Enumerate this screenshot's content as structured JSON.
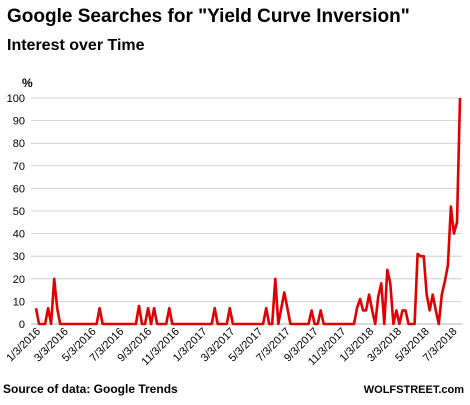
{
  "chart_data": {
    "type": "line",
    "title": "Google Searches for \"Yield Curve Inversion\"",
    "subtitle": "Interest over Time",
    "ylabel": "%",
    "xlabel": "",
    "ylim": [
      0,
      100
    ],
    "yticks": [
      0,
      10,
      20,
      30,
      40,
      50,
      60,
      70,
      80,
      90,
      100
    ],
    "xticks": [
      "1/3/2016",
      "3/3/2016",
      "5/3/2016",
      "7/3/2016",
      "9/3/2016",
      "11/3/2016",
      "1/3/2017",
      "3/3/2017",
      "5/3/2017",
      "7/3/2017",
      "9/3/2017",
      "11/3/2017",
      "1/3/2018",
      "3/3/2018",
      "5/3/2018",
      "7/3/2018"
    ],
    "grid": "horizontal",
    "line_color": "#e00000",
    "series": [
      {
        "values": [
          7,
          0,
          0,
          0,
          7,
          0,
          20,
          7,
          0,
          0,
          0,
          0,
          0,
          0,
          0,
          0,
          0,
          0,
          0,
          0,
          0,
          7,
          0,
          0,
          0,
          0,
          0,
          0,
          0,
          0,
          0,
          0,
          0,
          0,
          8,
          0,
          0,
          7,
          0,
          7,
          0,
          0,
          0,
          0,
          7,
          0,
          0,
          0,
          0,
          0,
          0,
          0,
          0,
          0,
          0,
          0,
          0,
          0,
          0,
          7,
          0,
          0,
          0,
          0,
          7,
          0,
          0,
          0,
          0,
          0,
          0,
          0,
          0,
          0,
          0,
          0,
          7,
          0,
          0,
          20,
          0,
          7,
          14,
          7,
          0,
          0,
          0,
          0,
          0,
          0,
          0,
          6,
          0,
          0,
          6,
          0,
          0,
          0,
          0,
          0,
          0,
          0,
          0,
          0,
          0,
          0,
          7,
          11,
          6,
          6,
          13,
          6,
          0,
          12,
          18,
          0,
          24,
          18,
          0,
          6,
          0,
          6,
          6,
          0,
          0,
          0,
          31,
          30,
          30,
          13,
          6,
          13,
          6,
          0,
          13,
          19,
          26,
          52,
          40,
          45,
          100
        ]
      }
    ],
    "source": "Source of data: Google Trends",
    "brand": "WOLFSTREET.com"
  }
}
